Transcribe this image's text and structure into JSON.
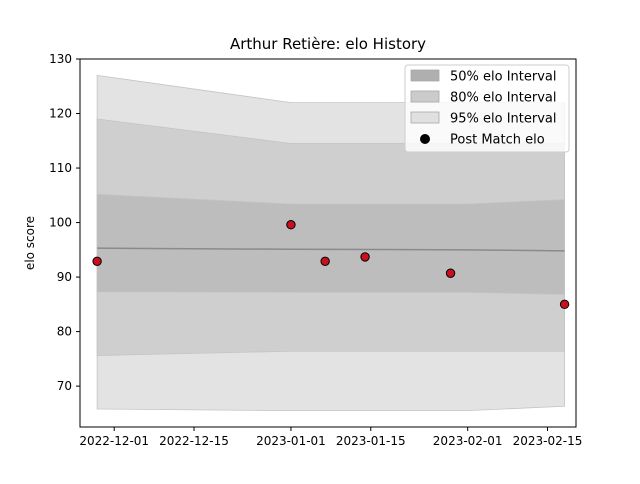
{
  "chart_data": {
    "type": "line",
    "title": "Arthur Retière: elo History",
    "xlabel": "",
    "ylabel": "elo score",
    "x_axis_type": "date",
    "xlim": [
      "2022-11-25",
      "2023-02-20"
    ],
    "ylim": [
      62.5,
      130
    ],
    "x_ticks": [
      "2022-12-01",
      "2022-12-15",
      "2023-01-01",
      "2023-01-15",
      "2023-02-01",
      "2023-02-15"
    ],
    "y_ticks": [
      70,
      80,
      90,
      100,
      110,
      120,
      130
    ],
    "grid": false,
    "legend_position": "upper right",
    "band_dates": [
      "2022-11-28",
      "2023-01-01",
      "2023-02-01",
      "2023-02-18"
    ],
    "series": [
      {
        "name": "95% elo Interval",
        "kind": "band",
        "color": "#e3e3e3",
        "lower": [
          65.8,
          65.5,
          65.5,
          66.3
        ],
        "upper": [
          127,
          122,
          122,
          122
        ]
      },
      {
        "name": "80% elo Interval",
        "kind": "band",
        "color": "#cfcfcf",
        "lower": [
          75.6,
          76.4,
          76.4,
          76.4
        ],
        "upper": [
          119,
          114.5,
          114.5,
          114.5
        ]
      },
      {
        "name": "50% elo Interval",
        "kind": "band",
        "color": "#bdbdbd",
        "lower": [
          87.3,
          87.2,
          87.2,
          86.8
        ],
        "upper": [
          105.2,
          103.4,
          103.4,
          104.2
        ]
      },
      {
        "kind": "line",
        "color": "#8a8a8a",
        "values": [
          95.3,
          95.1,
          95.0,
          94.8
        ]
      },
      {
        "name": "Post Match elo",
        "kind": "scatter",
        "color": "#c8101e",
        "points": [
          {
            "x": "2022-11-28",
            "y": 92.9
          },
          {
            "x": "2023-01-01",
            "y": 99.6
          },
          {
            "x": "2023-01-07",
            "y": 92.9
          },
          {
            "x": "2023-01-14",
            "y": 93.7
          },
          {
            "x": "2023-01-29",
            "y": 90.7
          },
          {
            "x": "2023-02-18",
            "y": 85.0
          }
        ]
      }
    ],
    "legend": [
      {
        "label": "50% elo Interval",
        "marker": "patch",
        "color": "#afafaf"
      },
      {
        "label": "80% elo Interval",
        "marker": "patch",
        "color": "#cbcbcb"
      },
      {
        "label": "95% elo Interval",
        "marker": "patch",
        "color": "#e0e0e0"
      },
      {
        "label": "Post Match elo",
        "marker": "dot",
        "color": "#000000"
      }
    ]
  }
}
